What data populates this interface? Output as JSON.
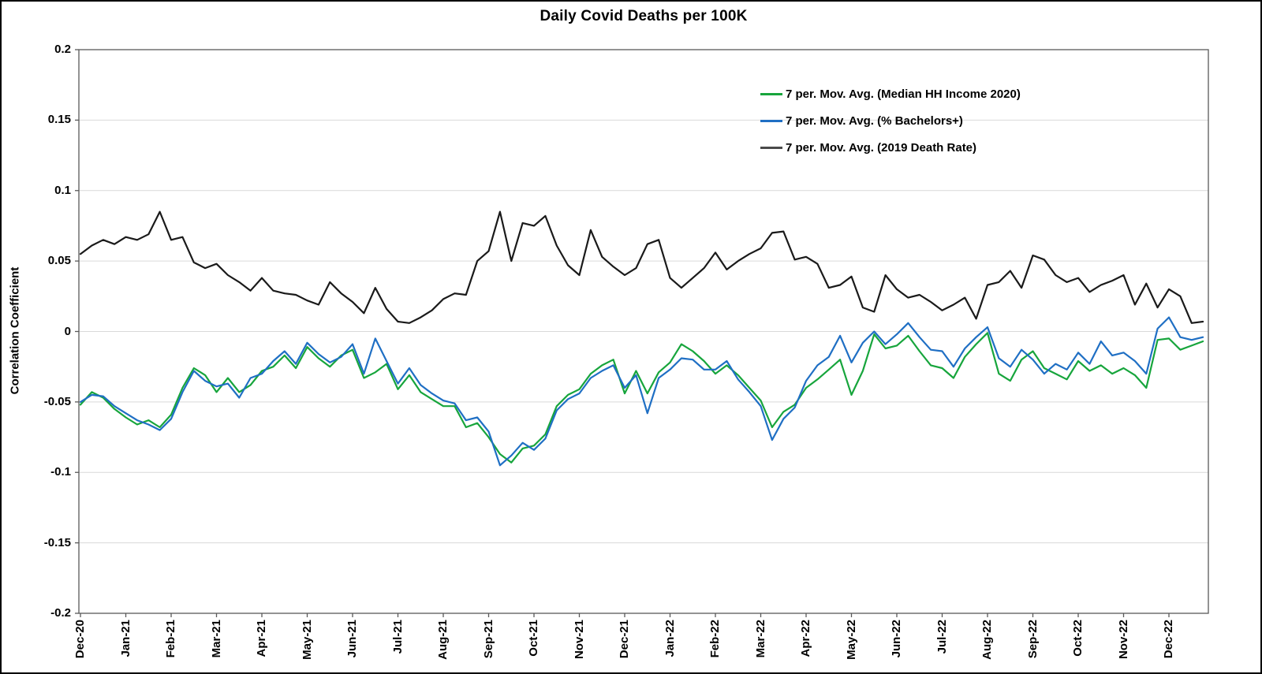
{
  "title": "Daily Covid Deaths per 100K",
  "y_axis": {
    "label": "Correlation Coefficient",
    "tick_labels": [
      "0.2",
      "0.15",
      "0.1",
      "0.05",
      "0",
      "-0.05",
      "-0.1",
      "-0.15",
      "-0.2"
    ],
    "tick_values": [
      0.2,
      0.15,
      0.1,
      0.05,
      0,
      -0.05,
      -0.1,
      -0.15,
      -0.2
    ]
  },
  "x_axis": {
    "tick_labels": [
      "Dec-20",
      "Jan-21",
      "Feb-21",
      "Mar-21",
      "Apr-21",
      "May-21",
      "Jun-21",
      "Jul-21",
      "Aug-21",
      "Sep-21",
      "Oct-21",
      "Nov-21",
      "Dec-21",
      "Jan-22",
      "Feb-22",
      "Mar-22",
      "Apr-22",
      "May-22",
      "Jun-22",
      "Jul-22",
      "Aug-22",
      "Sep-22",
      "Oct-22",
      "Nov-22",
      "Dec-22"
    ]
  },
  "legend": {
    "items": [
      {
        "label": "7 per. Mov. Avg. (Median HH Income 2020)",
        "color": "#17A53C"
      },
      {
        "label": "7 per. Mov. Avg. (% Bachelors+)",
        "color": "#1F6FC4"
      },
      {
        "label": "7 per. Mov. Avg. (2019 Death Rate)",
        "color": "#4A4A4A"
      }
    ]
  },
  "colors": {
    "gridline": "#D9D9D9",
    "plot_border": "#595959",
    "axis_tick": "#595959"
  },
  "chart_data": {
    "type": "line",
    "title": "Daily Covid Deaths per 100K",
    "xlabel": "",
    "ylabel": "Correlation Coefficient",
    "ylim": [
      -0.2,
      0.2
    ],
    "ytick_step": 0.05,
    "grid": "horizontal",
    "legend_position": "top-right-inside",
    "x_tick_labels": [
      "Dec-20",
      "Jan-21",
      "Feb-21",
      "Mar-21",
      "Apr-21",
      "May-21",
      "Jun-21",
      "Jul-21",
      "Aug-21",
      "Sep-21",
      "Oct-21",
      "Nov-21",
      "Dec-21",
      "Jan-22",
      "Feb-22",
      "Mar-22",
      "Apr-22",
      "May-22",
      "Jun-22",
      "Jul-22",
      "Aug-22",
      "Sep-22",
      "Oct-22",
      "Nov-22",
      "Dec-22"
    ],
    "x_unit": "months_since_Dec_2020",
    "x_start": 0,
    "x_step": 0.25,
    "series": [
      {
        "name": "7 per. Mov. Avg. (Median HH Income 2020)",
        "color": "#17A53C",
        "values": [
          -0.052,
          -0.043,
          -0.047,
          -0.055,
          -0.061,
          -0.066,
          -0.063,
          -0.068,
          -0.059,
          -0.04,
          -0.026,
          -0.031,
          -0.043,
          -0.033,
          -0.043,
          -0.038,
          -0.028,
          -0.025,
          -0.017,
          -0.026,
          -0.011,
          -0.019,
          -0.025,
          -0.017,
          -0.013,
          -0.033,
          -0.029,
          -0.023,
          -0.041,
          -0.031,
          -0.043,
          -0.048,
          -0.053,
          -0.053,
          -0.068,
          -0.065,
          -0.075,
          -0.087,
          -0.093,
          -0.083,
          -0.081,
          -0.073,
          -0.053,
          -0.045,
          -0.041,
          -0.03,
          -0.024,
          -0.02,
          -0.044,
          -0.028,
          -0.044,
          -0.029,
          -0.022,
          -0.009,
          -0.014,
          -0.021,
          -0.03,
          -0.024,
          -0.031,
          -0.04,
          -0.049,
          -0.068,
          -0.057,
          -0.052,
          -0.04,
          -0.034,
          -0.027,
          -0.02,
          -0.045,
          -0.028,
          -0.002,
          -0.012,
          -0.01,
          -0.003,
          -0.014,
          -0.024,
          -0.026,
          -0.033,
          -0.018,
          -0.009,
          -0.001,
          -0.03,
          -0.035,
          -0.02,
          -0.014,
          -0.026,
          -0.03,
          -0.034,
          -0.021,
          -0.028,
          -0.024,
          -0.03,
          -0.026,
          -0.031,
          -0.04,
          -0.006,
          -0.005,
          -0.013,
          -0.01,
          -0.007
        ]
      },
      {
        "name": "7 per. Mov. Avg. (% Bachelors+)",
        "color": "#1F6FC4",
        "values": [
          -0.05,
          -0.045,
          -0.046,
          -0.053,
          -0.058,
          -0.063,
          -0.066,
          -0.07,
          -0.062,
          -0.043,
          -0.028,
          -0.035,
          -0.039,
          -0.037,
          -0.047,
          -0.033,
          -0.03,
          -0.021,
          -0.014,
          -0.023,
          -0.008,
          -0.016,
          -0.022,
          -0.018,
          -0.009,
          -0.03,
          -0.005,
          -0.021,
          -0.037,
          -0.026,
          -0.038,
          -0.044,
          -0.049,
          -0.051,
          -0.063,
          -0.061,
          -0.071,
          -0.095,
          -0.088,
          -0.079,
          -0.084,
          -0.076,
          -0.056,
          -0.048,
          -0.044,
          -0.033,
          -0.028,
          -0.024,
          -0.04,
          -0.031,
          -0.058,
          -0.033,
          -0.027,
          -0.019,
          -0.02,
          -0.027,
          -0.027,
          -0.021,
          -0.034,
          -0.043,
          -0.053,
          -0.077,
          -0.062,
          -0.054,
          -0.035,
          -0.024,
          -0.018,
          -0.003,
          -0.022,
          -0.008,
          0.0,
          -0.009,
          -0.002,
          0.006,
          -0.004,
          -0.013,
          -0.014,
          -0.025,
          -0.012,
          -0.004,
          0.003,
          -0.019,
          -0.025,
          -0.013,
          -0.02,
          -0.03,
          -0.023,
          -0.027,
          -0.015,
          -0.023,
          -0.007,
          -0.017,
          -0.015,
          -0.021,
          -0.03,
          0.002,
          0.01,
          -0.004,
          -0.006,
          -0.004
        ]
      },
      {
        "name": "7 per. Mov. Avg. (2019 Death Rate)",
        "color": "#1A1A1A",
        "values": [
          0.055,
          0.061,
          0.065,
          0.062,
          0.067,
          0.065,
          0.069,
          0.085,
          0.065,
          0.067,
          0.049,
          0.045,
          0.048,
          0.04,
          0.035,
          0.029,
          0.038,
          0.029,
          0.027,
          0.026,
          0.022,
          0.019,
          0.035,
          0.027,
          0.021,
          0.013,
          0.031,
          0.016,
          0.007,
          0.006,
          0.01,
          0.015,
          0.023,
          0.027,
          0.026,
          0.05,
          0.057,
          0.085,
          0.05,
          0.077,
          0.075,
          0.082,
          0.061,
          0.047,
          0.04,
          0.072,
          0.053,
          0.046,
          0.04,
          0.045,
          0.062,
          0.065,
          0.038,
          0.031,
          0.038,
          0.045,
          0.056,
          0.044,
          0.05,
          0.055,
          0.059,
          0.07,
          0.071,
          0.051,
          0.053,
          0.048,
          0.031,
          0.033,
          0.039,
          0.017,
          0.014,
          0.04,
          0.03,
          0.024,
          0.026,
          0.021,
          0.015,
          0.019,
          0.024,
          0.009,
          0.033,
          0.035,
          0.043,
          0.031,
          0.054,
          0.051,
          0.04,
          0.035,
          0.038,
          0.028,
          0.033,
          0.036,
          0.04,
          0.019,
          0.034,
          0.017,
          0.03,
          0.025,
          0.006,
          0.007
        ]
      }
    ]
  }
}
